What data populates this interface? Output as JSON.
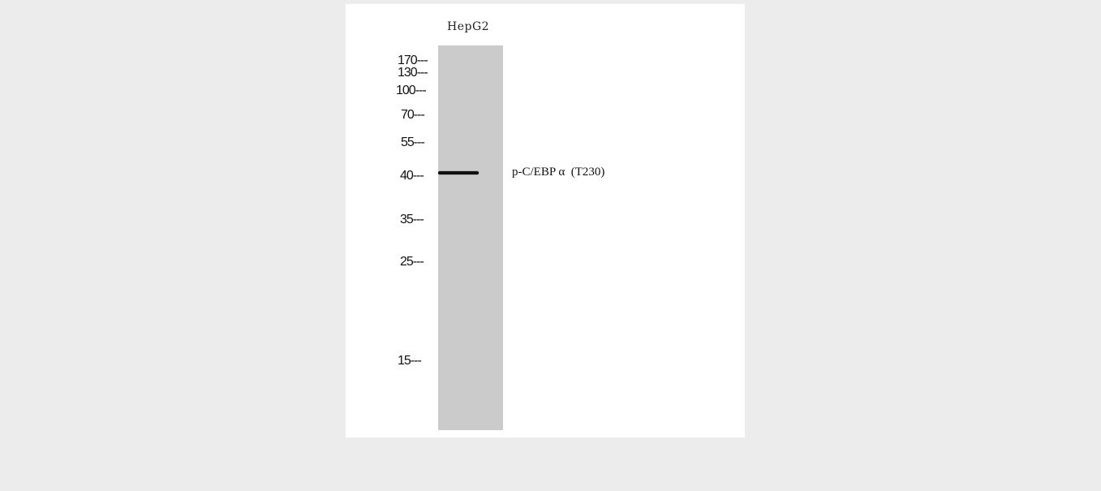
{
  "blot": {
    "lane_label": "HepG2",
    "markers": [
      "170---",
      "130---",
      "100---",
      "70---",
      "55---",
      "40---",
      "35---",
      "25---",
      "15---"
    ],
    "band_label": "p-C/EBP α  (T230)"
  }
}
